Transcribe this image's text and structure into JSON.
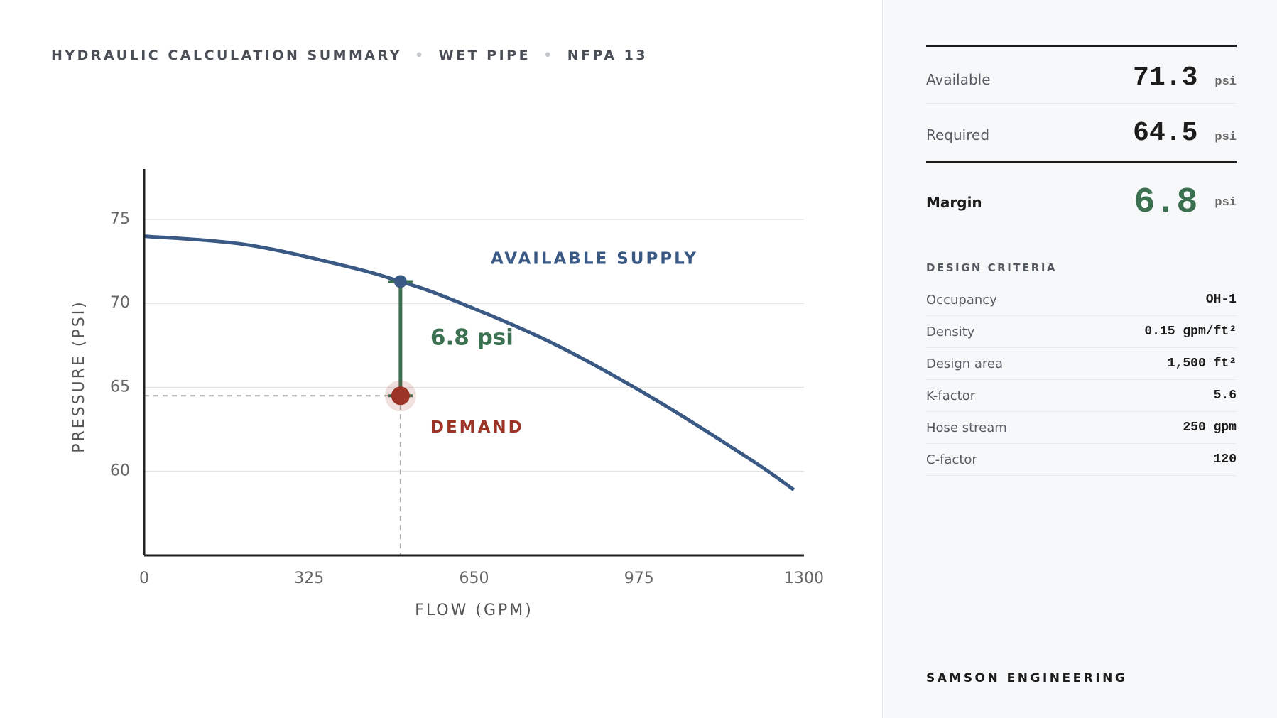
{
  "header": {
    "title_parts": [
      "HYDRAULIC CALCULATION SUMMARY",
      "WET PIPE",
      "NFPA 13"
    ]
  },
  "chart_data": {
    "type": "line",
    "x_label": "FLOW (GPM)",
    "y_label": "PRESSURE (PSI)",
    "xlim": [
      0,
      1300
    ],
    "xticks": [
      0,
      325,
      650,
      975,
      1300
    ],
    "ylim": [
      55,
      78
    ],
    "yticks": [
      60,
      65,
      70,
      75
    ],
    "grid": true,
    "series": [
      {
        "name": "AVAILABLE SUPPLY",
        "color": "#3a5a85",
        "x": [
          0,
          200,
          400,
          505,
          600,
          800,
          1000,
          1200,
          1280
        ],
        "values": [
          74.0,
          73.5,
          72.2,
          71.3,
          70.3,
          67.7,
          64.4,
          60.6,
          58.9
        ]
      },
      {
        "name": "DEMAND",
        "color": "#9b3426",
        "x": [
          505
        ],
        "values": [
          64.5
        ]
      }
    ],
    "margin": {
      "value": 6.8,
      "label": "6.8 psi",
      "color": "#3b7150"
    }
  },
  "sidebar": {
    "summary": [
      {
        "label": "Available",
        "value": 71.3,
        "unit": "psi"
      },
      {
        "label": "Required",
        "value": 64.5,
        "unit": "psi"
      }
    ],
    "margin": {
      "label": "Margin",
      "value": 6.8,
      "unit": "psi"
    },
    "criteria_title": "DESIGN CRITERIA",
    "criteria": [
      [
        "Occupancy",
        "OH-1"
      ],
      [
        "Density",
        "0.15 gpm/ft²"
      ],
      [
        "Design area",
        "1,500 ft²"
      ],
      [
        "K-factor",
        "5.6"
      ],
      [
        "Hose stream",
        "250 gpm"
      ],
      [
        "C-factor",
        "120"
      ]
    ],
    "footer": "SAMSON ENGINEERING"
  }
}
